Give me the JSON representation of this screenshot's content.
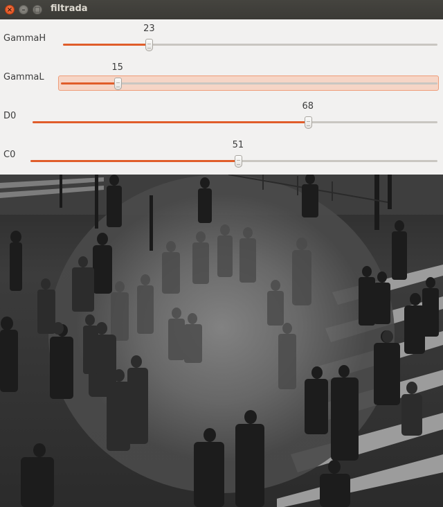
{
  "window": {
    "title": "filtrada",
    "close_glyph": "×",
    "minimize_glyph": "–",
    "maximize_glyph": "□"
  },
  "trackbars": [
    {
      "label": "GammaH",
      "value": "23",
      "fraction": 0.23,
      "focused": false
    },
    {
      "label": "GammaL",
      "value": "15",
      "fraction": 0.15,
      "focused": true
    },
    {
      "label": "D0",
      "value": "68",
      "fraction": 0.68,
      "focused": false
    },
    {
      "label": "C0",
      "value": "51",
      "fraction": 0.51,
      "focused": false
    }
  ],
  "image": {
    "description_icon": "filtered-grayscale-crosswalk-photo"
  },
  "colors": {
    "accent": "#e05d2a",
    "titlebar": "#3c3b37",
    "panel": "#f2f1f0"
  }
}
